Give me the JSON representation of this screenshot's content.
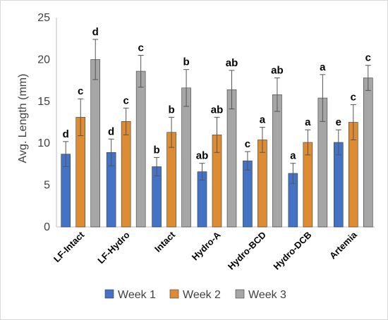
{
  "chart_data": {
    "type": "bar",
    "ylabel": "Avg. Length (mm)",
    "xlabel": "",
    "ylim": [
      0,
      25
    ],
    "yticks": [
      0,
      5,
      10,
      15,
      20,
      25
    ],
    "grid": false,
    "legend_position": "bottom",
    "categories": [
      "LF-Intact",
      "LF-Hydro",
      "Intact",
      "Hydro-A",
      "Hydro-BCD",
      "Hydro-DCB",
      "Artemia"
    ],
    "series": [
      {
        "name": "Week 1",
        "color": "#4472c4",
        "values": [
          8.7,
          8.9,
          7.2,
          6.6,
          7.9,
          6.4,
          10.1
        ],
        "errors": [
          1.5,
          1.6,
          1.1,
          1.0,
          1.1,
          1.2,
          1.5
        ],
        "labels": [
          "d",
          "d",
          "b",
          "ab",
          "c",
          "a",
          "e"
        ]
      },
      {
        "name": "Week 2",
        "color": "#dd8c33",
        "values": [
          13.1,
          12.6,
          11.3,
          11.0,
          10.4,
          10.1,
          12.5
        ],
        "errors": [
          2.2,
          1.6,
          1.8,
          2.1,
          1.5,
          1.5,
          2.1
        ],
        "labels": [
          "c",
          "c",
          "b",
          "ab",
          "a",
          "a",
          "c"
        ]
      },
      {
        "name": "Week 3",
        "color": "#a6a6a6",
        "values": [
          20.0,
          18.6,
          16.6,
          16.4,
          15.8,
          15.4,
          17.8
        ],
        "errors": [
          2.4,
          1.9,
          2.2,
          2.3,
          2.0,
          2.8,
          1.5
        ],
        "labels": [
          "d",
          "c",
          "b",
          "ab",
          "ab",
          "a",
          "c"
        ]
      }
    ]
  }
}
